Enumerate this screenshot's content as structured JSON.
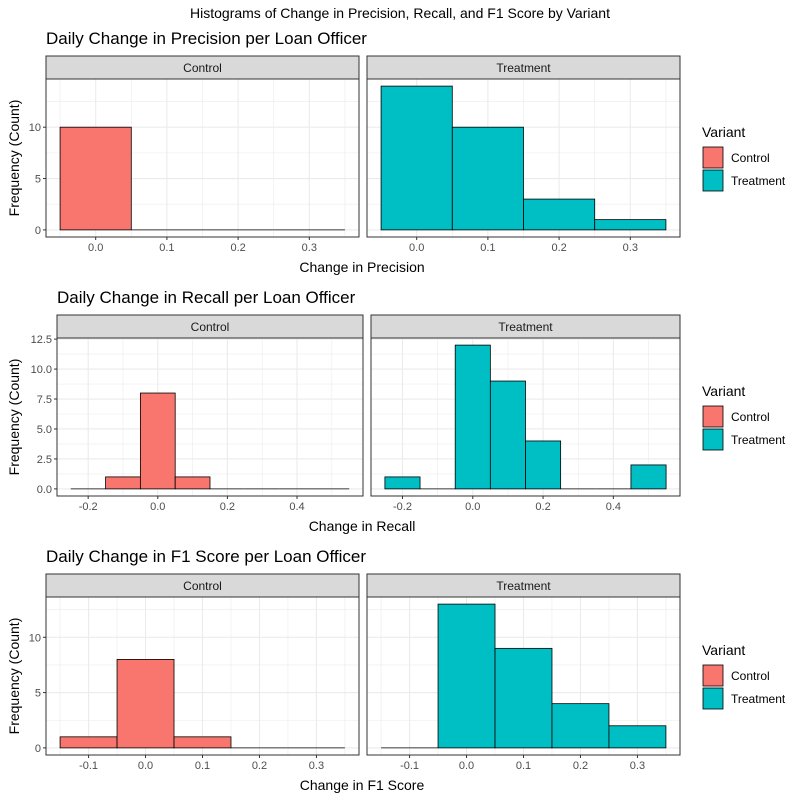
{
  "suptitle": "Histograms of Change in Precision, Recall, and F1 Score by Variant",
  "colors": {
    "Control": "#F8766D",
    "Treatment": "#00BFC4",
    "strip": "#d9d9d9",
    "grid": "#ebebeb"
  },
  "chart_data": [
    {
      "type": "bar",
      "title": "Daily Change in Precision per Loan Officer",
      "xlabel": "Change in Precision",
      "ylabel": "Frequency (Count)",
      "xlim": [
        -0.05,
        0.35
      ],
      "xticks": [
        0.0,
        0.1,
        0.2,
        0.3
      ],
      "xtick_labels": [
        "0.0",
        "0.1",
        "0.2",
        "0.3"
      ],
      "ylim": [
        0,
        14
      ],
      "yticks": [
        0,
        5,
        10
      ],
      "ytick_labels": [
        "0",
        "5",
        "10"
      ],
      "legend": {
        "title": "Variant",
        "entries": [
          "Control",
          "Treatment"
        ],
        "position": "right"
      },
      "facets": [
        {
          "label": "Control",
          "series": "Control",
          "bins": [
            {
              "x0": -0.05,
              "x1": 0.05,
              "count": 10
            },
            {
              "x0": 0.05,
              "x1": 0.15,
              "count": 0
            },
            {
              "x0": 0.15,
              "x1": 0.25,
              "count": 0
            },
            {
              "x0": 0.25,
              "x1": 0.35,
              "count": 0
            }
          ]
        },
        {
          "label": "Treatment",
          "series": "Treatment",
          "bins": [
            {
              "x0": -0.05,
              "x1": 0.05,
              "count": 14
            },
            {
              "x0": 0.05,
              "x1": 0.15,
              "count": 10
            },
            {
              "x0": 0.15,
              "x1": 0.25,
              "count": 3
            },
            {
              "x0": 0.25,
              "x1": 0.35,
              "count": 1
            }
          ]
        }
      ]
    },
    {
      "type": "bar",
      "title": "Daily Change in Recall per Loan Officer",
      "xlabel": "Change in Recall",
      "ylabel": "Frequency (Count)",
      "xlim": [
        -0.25,
        0.55
      ],
      "xticks": [
        -0.2,
        0.0,
        0.2,
        0.4
      ],
      "xtick_labels": [
        "-0.2",
        "0.0",
        "0.2",
        "0.4"
      ],
      "ylim": [
        0,
        12
      ],
      "yticks": [
        0,
        2.5,
        5,
        7.5,
        10,
        12.5
      ],
      "ytick_labels": [
        "0.0",
        "2.5",
        "5.0",
        "7.5",
        "10.0",
        "12.5"
      ],
      "legend": {
        "title": "Variant",
        "entries": [
          "Control",
          "Treatment"
        ],
        "position": "right"
      },
      "facets": [
        {
          "label": "Control",
          "series": "Control",
          "bins": [
            {
              "x0": -0.25,
              "x1": -0.15,
              "count": 0
            },
            {
              "x0": -0.15,
              "x1": -0.05,
              "count": 1
            },
            {
              "x0": -0.05,
              "x1": 0.05,
              "count": 8
            },
            {
              "x0": 0.05,
              "x1": 0.15,
              "count": 1
            },
            {
              "x0": 0.15,
              "x1": 0.25,
              "count": 0
            },
            {
              "x0": 0.25,
              "x1": 0.35,
              "count": 0
            },
            {
              "x0": 0.35,
              "x1": 0.45,
              "count": 0
            },
            {
              "x0": 0.45,
              "x1": 0.55,
              "count": 0
            }
          ]
        },
        {
          "label": "Treatment",
          "series": "Treatment",
          "bins": [
            {
              "x0": -0.25,
              "x1": -0.15,
              "count": 1
            },
            {
              "x0": -0.15,
              "x1": -0.05,
              "count": 0
            },
            {
              "x0": -0.05,
              "x1": 0.05,
              "count": 12
            },
            {
              "x0": 0.05,
              "x1": 0.15,
              "count": 9
            },
            {
              "x0": 0.15,
              "x1": 0.25,
              "count": 4
            },
            {
              "x0": 0.25,
              "x1": 0.35,
              "count": 0
            },
            {
              "x0": 0.35,
              "x1": 0.45,
              "count": 0
            },
            {
              "x0": 0.45,
              "x1": 0.55,
              "count": 2
            }
          ]
        }
      ]
    },
    {
      "type": "bar",
      "title": "Daily Change in F1 Score per Loan Officer",
      "xlabel": "Change in F1 Score",
      "ylabel": "Frequency (Count)",
      "xlim": [
        -0.15,
        0.35
      ],
      "xticks": [
        -0.1,
        0.0,
        0.1,
        0.2,
        0.3
      ],
      "xtick_labels": [
        "-0.1",
        "0.0",
        "0.1",
        "0.2",
        "0.3"
      ],
      "ylim": [
        0,
        13
      ],
      "yticks": [
        0,
        5,
        10
      ],
      "ytick_labels": [
        "0",
        "5",
        "10"
      ],
      "legend": {
        "title": "Variant",
        "entries": [
          "Control",
          "Treatment"
        ],
        "position": "right"
      },
      "facets": [
        {
          "label": "Control",
          "series": "Control",
          "bins": [
            {
              "x0": -0.15,
              "x1": -0.05,
              "count": 1
            },
            {
              "x0": -0.05,
              "x1": 0.05,
              "count": 8
            },
            {
              "x0": 0.05,
              "x1": 0.15,
              "count": 1
            },
            {
              "x0": 0.15,
              "x1": 0.25,
              "count": 0
            },
            {
              "x0": 0.25,
              "x1": 0.35,
              "count": 0
            }
          ]
        },
        {
          "label": "Treatment",
          "series": "Treatment",
          "bins": [
            {
              "x0": -0.15,
              "x1": -0.05,
              "count": 0
            },
            {
              "x0": -0.05,
              "x1": 0.05,
              "count": 13
            },
            {
              "x0": 0.05,
              "x1": 0.15,
              "count": 9
            },
            {
              "x0": 0.15,
              "x1": 0.25,
              "count": 4
            },
            {
              "x0": 0.25,
              "x1": 0.35,
              "count": 2
            }
          ]
        }
      ]
    }
  ]
}
